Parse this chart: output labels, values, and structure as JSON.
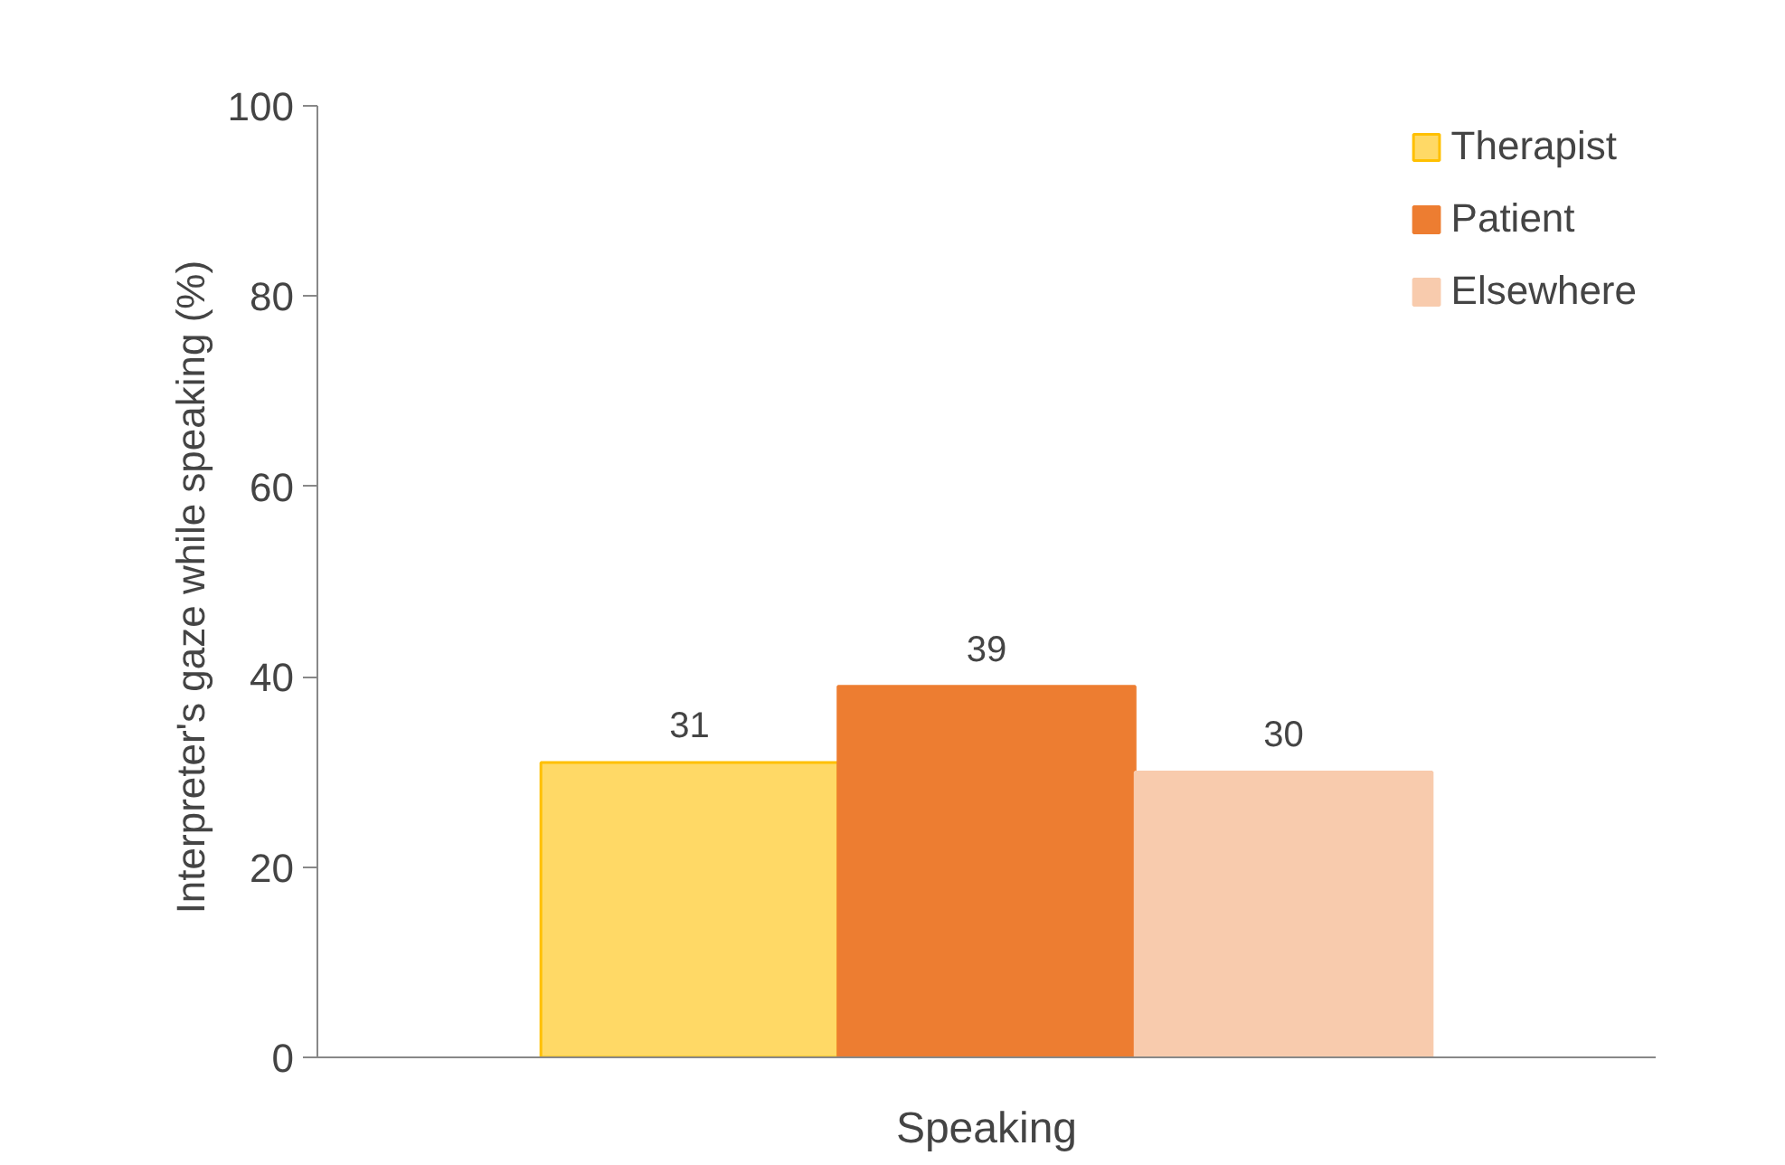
{
  "chart_data": {
    "type": "bar",
    "ylabel": "Interpreter's gaze while speaking  (%)",
    "categories": [
      "Speaking"
    ],
    "series": [
      {
        "name": "Therapist",
        "color": "#ffd966",
        "values": [
          31
        ]
      },
      {
        "name": "Patient",
        "color": "#ed7d31",
        "values": [
          39
        ]
      },
      {
        "name": "Elsewhere",
        "color": "#f8cbad",
        "values": [
          30
        ]
      }
    ],
    "ylim": [
      0,
      100
    ],
    "yticks": [
      0,
      20,
      40,
      60,
      80,
      100
    ],
    "grid": false,
    "legend": "top right",
    "data_labels": true
  }
}
